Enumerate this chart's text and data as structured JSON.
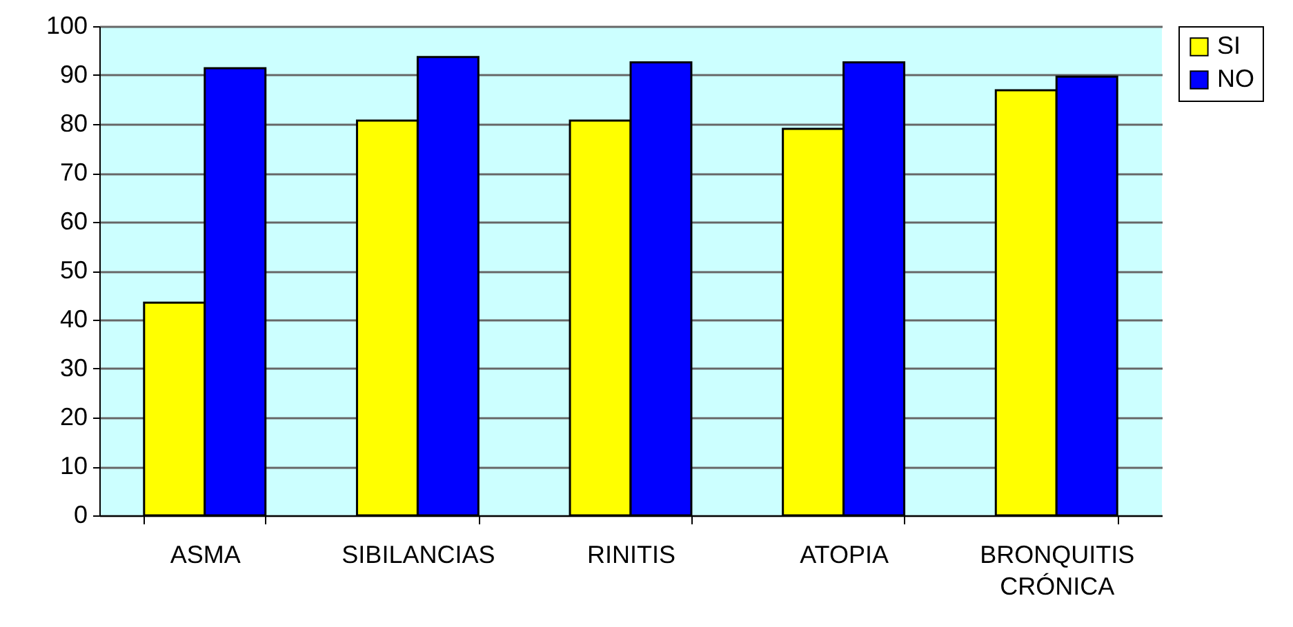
{
  "chart_data": {
    "type": "bar",
    "categories": [
      "ASMA",
      "SIBILANCIAS",
      "RINITIS",
      "ATOPIA",
      "BRONQUITIS CRÓNICA"
    ],
    "series": [
      {
        "name": "SI",
        "color": "#ffff00",
        "values": [
          43.5,
          80.7,
          80.7,
          79.0,
          86.9
        ]
      },
      {
        "name": "NO",
        "color": "#0000ff",
        "values": [
          91.4,
          93.7,
          92.6,
          92.6,
          89.7
        ]
      }
    ],
    "ylim": [
      0,
      100
    ],
    "yticks": [
      0,
      10,
      20,
      30,
      40,
      50,
      60,
      70,
      80,
      90,
      100
    ],
    "grid": "y",
    "legend": "right"
  }
}
